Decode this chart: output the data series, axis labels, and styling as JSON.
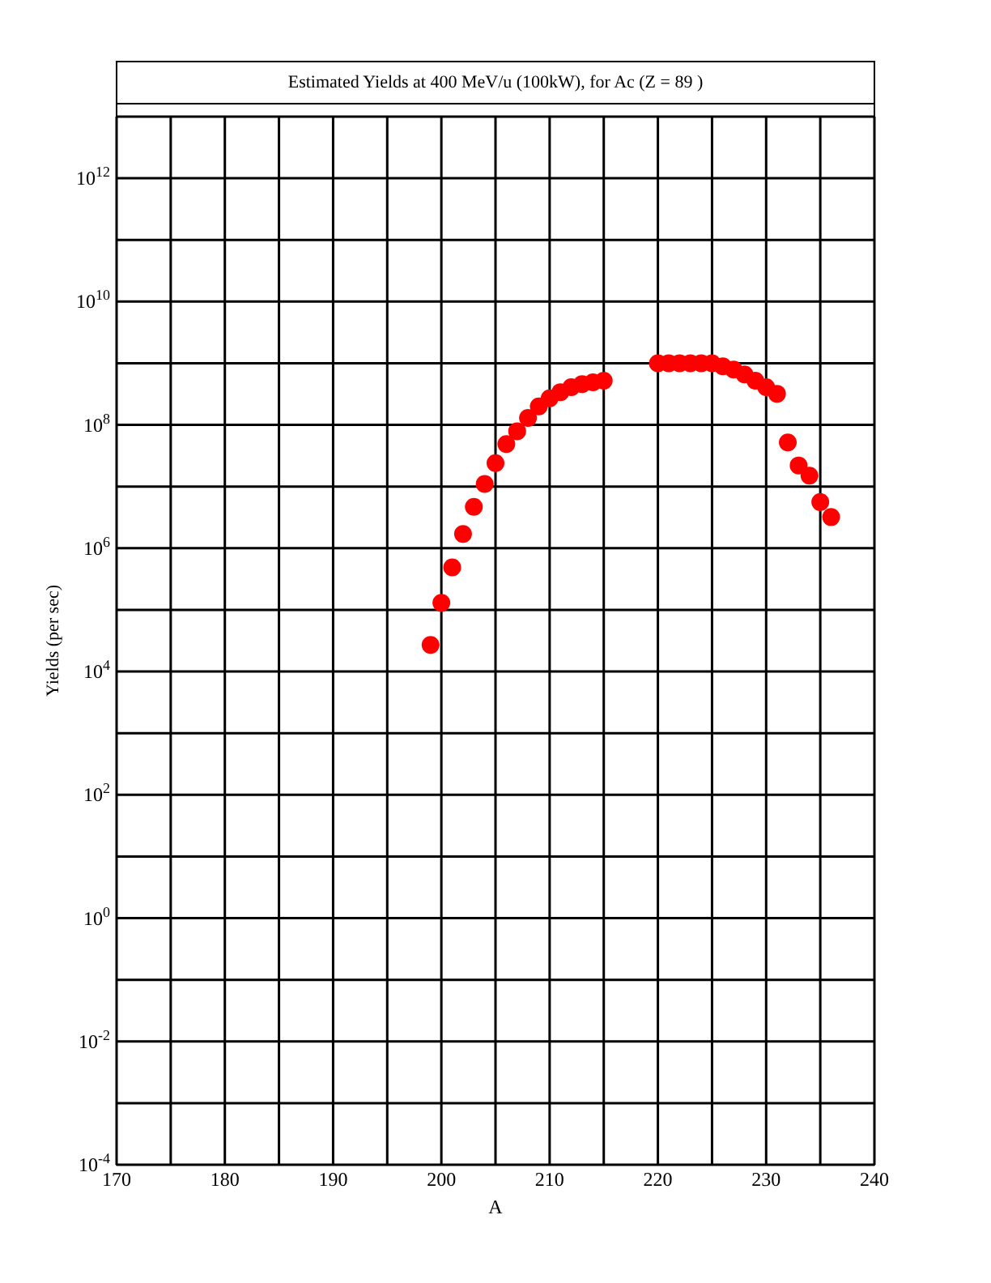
{
  "chart_data": {
    "type": "scatter",
    "title": "Estimated Yields at 400 MeV/u (100kW), for Ac (Z = 89 )",
    "xlabel": "A",
    "ylabel": "Yields (per sec)",
    "log": "y",
    "grid": true,
    "marker": "circle",
    "x": [
      199,
      200,
      201,
      202,
      203,
      204,
      205,
      206,
      207,
      208,
      209,
      210,
      211,
      212,
      213,
      214,
      215,
      220,
      221,
      222,
      223,
      224,
      225,
      226,
      227,
      228,
      229,
      230,
      231,
      232,
      233,
      234,
      235,
      236
    ],
    "series": [
      {
        "color": "#ff0000",
        "values": [
          27000.0,
          130000.0,
          490000.0,
          1700000.0,
          4700000.0,
          11000000.0,
          24000000.0,
          49000000.0,
          79000000.0,
          130000000.0,
          200000000.0,
          270000000.0,
          340000000.0,
          410000000.0,
          460000000.0,
          490000000.0,
          520000000.0,
          1000000000.0,
          1000000000.0,
          1000000000.0,
          1000000000.0,
          1000000000.0,
          1000000000.0,
          890000000.0,
          790000000.0,
          660000000.0,
          520000000.0,
          410000000.0,
          320000000.0,
          52000000.0,
          22000000.0,
          15000000.0,
          5600000.0,
          3200000.0
        ]
      }
    ],
    "xlim": [
      170,
      240
    ],
    "xticks": [
      170,
      {
        "value": 175,
        "label": null
      },
      180,
      {
        "value": 185,
        "label": null
      },
      190,
      {
        "value": 195,
        "label": null
      },
      200,
      {
        "value": 205,
        "label": null
      },
      210,
      {
        "value": 215,
        "label": null
      },
      220,
      {
        "value": 225,
        "label": null
      },
      230,
      {
        "value": 235,
        "label": null
      },
      240
    ],
    "ylim": [
      0.0001,
      10000000000000.0
    ],
    "yticks": [
      {
        "value": 0.0001,
        "label": "10$^{-4}$"
      },
      {
        "value": 0.001,
        "label": null
      },
      {
        "value": 0.01,
        "label": "10$^{-2}$"
      },
      {
        "value": 0.1,
        "label": null
      },
      {
        "value": 1,
        "label": "10$^{0}$"
      },
      {
        "value": 10,
        "label": null
      },
      {
        "value": 100,
        "label": "10$^{2}$"
      },
      {
        "value": 1000.0,
        "label": null
      },
      {
        "value": 10000.0,
        "label": "10$^{4}$"
      },
      {
        "value": 100000.0,
        "label": null
      },
      {
        "value": 1000000.0,
        "label": "10$^{6}$"
      },
      {
        "value": 10000000.0,
        "label": null
      },
      {
        "value": 100000000.0,
        "label": "10$^{8}$"
      },
      {
        "value": 1000000000.0,
        "label": null
      },
      {
        "value": 10000000000.0,
        "label": "10$^{10}$"
      },
      {
        "value": 100000000000.0,
        "label": null
      },
      {
        "value": 1000000000000.0,
        "label": "10$^{12}$"
      },
      {
        "value": 10000000000000.0,
        "label": null
      }
    ]
  }
}
